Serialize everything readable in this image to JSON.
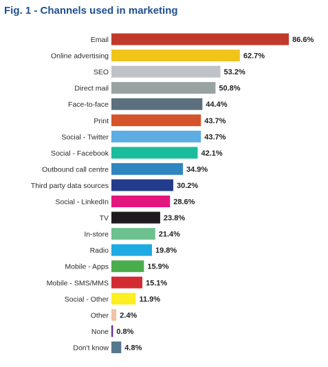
{
  "chart_data": {
    "type": "bar",
    "orientation": "horizontal",
    "title": "Fig. 1 - Channels used in marketing",
    "xlabel": "",
    "ylabel": "",
    "xlim": [
      0,
      100
    ],
    "grid": false,
    "legend": "none",
    "value_suffix": "%",
    "categories": [
      "Email",
      "Online advertising",
      "SEO",
      "Direct mail",
      "Face-to-face",
      "Print",
      "Social - Twitter",
      "Social - Facebook",
      "Outbound call centre",
      "Third party data sources",
      "Social - LinkedIn",
      "TV",
      "In-store",
      "Radio",
      "Mobile - Apps",
      "Mobile - SMS/MMS",
      "Social - Other",
      "Other",
      "None",
      "Don't know"
    ],
    "values": [
      86.6,
      62.7,
      53.2,
      50.8,
      44.4,
      43.7,
      43.7,
      42.1,
      34.9,
      30.2,
      28.6,
      23.8,
      21.4,
      19.8,
      15.9,
      15.1,
      11.9,
      2.4,
      0.8,
      4.8
    ],
    "colors": [
      "#c1392b",
      "#f1c419",
      "#bfc3c7",
      "#98a3a1",
      "#5b6f7e",
      "#d4532a",
      "#5dade2",
      "#1abc9c",
      "#2e86c1",
      "#233d8c",
      "#e3157f",
      "#1f1a1f",
      "#6cc18e",
      "#1eabe3",
      "#49ad4c",
      "#d42b33",
      "#fcee21",
      "#f2c3a4",
      "#6a2c91",
      "#54788e"
    ]
  }
}
